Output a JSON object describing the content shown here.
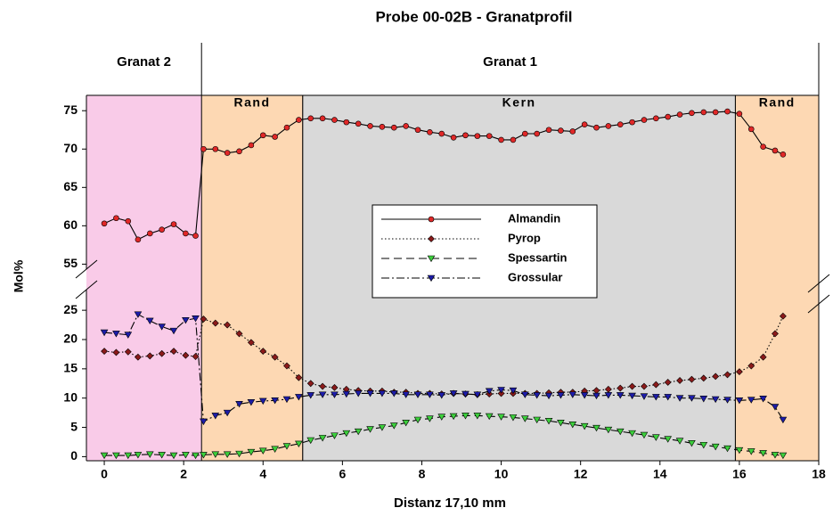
{
  "chart_data": {
    "type": "line",
    "title": "Probe 00-02B - Granatprofil",
    "xlabel": "Distanz 17,10 mm",
    "ylabel": "Mol%",
    "xlim": [
      -0.45,
      18
    ],
    "xticks": [
      0,
      2,
      4,
      6,
      8,
      10,
      12,
      14,
      16,
      18
    ],
    "y_segments": [
      {
        "ylim": [
          -0.7,
          27
        ],
        "yticks": [
          0,
          5,
          10,
          15,
          20,
          25
        ]
      },
      {
        "ylim": [
          54,
          77
        ],
        "yticks": [
          55,
          60,
          65,
          70,
          75
        ]
      }
    ],
    "groups": [
      {
        "label": "Granat 2",
        "from": -0.45,
        "to": 2.45,
        "color": "#f9cbe8"
      },
      {
        "label": "Granat 1",
        "from": 2.45,
        "to": 18
      }
    ],
    "zones": [
      {
        "label": "Rand",
        "from": 2.45,
        "to": 5,
        "color": "#fdd8b3"
      },
      {
        "label": "Kern",
        "from": 5,
        "to": 15.9,
        "color": "#d9d9d9"
      },
      {
        "label": "Rand",
        "from": 15.9,
        "to": 18,
        "color": "#fdd8b3"
      }
    ],
    "x": [
      0,
      0.3,
      0.6,
      0.85,
      1.15,
      1.45,
      1.75,
      2.05,
      2.3,
      2.5,
      2.8,
      3.1,
      3.4,
      3.7,
      4.0,
      4.3,
      4.6,
      4.9,
      5.2,
      5.5,
      5.8,
      6.1,
      6.4,
      6.7,
      7.0,
      7.3,
      7.6,
      7.9,
      8.2,
      8.5,
      8.8,
      9.1,
      9.4,
      9.7,
      10.0,
      10.3,
      10.6,
      10.9,
      11.2,
      11.5,
      11.8,
      12.1,
      12.4,
      12.7,
      13.0,
      13.3,
      13.6,
      13.9,
      14.2,
      14.5,
      14.8,
      15.1,
      15.4,
      15.7,
      16.0,
      16.3,
      16.6,
      16.9,
      17.1
    ],
    "series": [
      {
        "name": "Almandin",
        "color": "#e02828",
        "marker": "circle",
        "line_style": "solid",
        "values": [
          60.3,
          61,
          60.6,
          58.2,
          59,
          59.5,
          60.2,
          59,
          58.7,
          70,
          70,
          69.5,
          69.7,
          70.5,
          71.8,
          71.6,
          72.8,
          73.8,
          74,
          74,
          73.8,
          73.5,
          73.3,
          73,
          72.9,
          72.8,
          73,
          72.5,
          72.2,
          72,
          71.5,
          71.8,
          71.7,
          71.7,
          71.2,
          71.2,
          72,
          72,
          72.5,
          72.4,
          72.3,
          73.2,
          72.8,
          73,
          73.2,
          73.5,
          73.8,
          74,
          74.2,
          74.5,
          74.7,
          74.8,
          74.8,
          74.9,
          74.6,
          72.6,
          70.3,
          69.8,
          69.3
        ]
      },
      {
        "name": "Pyrop",
        "color": "#8b1a1a",
        "marker": "diamond",
        "line_style": "dotted",
        "values": [
          18,
          17.8,
          17.9,
          17,
          17.2,
          17.6,
          18,
          17.3,
          17.1,
          23.5,
          22.8,
          22.5,
          21,
          19.5,
          18,
          17,
          15.5,
          13.5,
          12.5,
          12,
          11.8,
          11.5,
          11.3,
          11.2,
          11.2,
          11,
          11,
          10.8,
          10.8,
          10.7,
          10.8,
          10.7,
          10.6,
          10.7,
          10.8,
          10.8,
          10.8,
          10.8,
          10.9,
          11,
          11,
          11.2,
          11.3,
          11.5,
          11.7,
          12,
          12,
          12.3,
          12.7,
          13,
          13.2,
          13.4,
          13.7,
          14,
          14.5,
          15.5,
          17,
          21,
          24
        ]
      },
      {
        "name": "Spessartin",
        "color": "#3ccf3c",
        "marker": "triangle-down",
        "line_style": "dashed",
        "values": [
          0.2,
          0.2,
          0.2,
          0.3,
          0.4,
          0.3,
          0.2,
          0.3,
          0.2,
          0.3,
          0.4,
          0.4,
          0.5,
          0.8,
          1,
          1.3,
          1.8,
          2.2,
          2.8,
          3.2,
          3.6,
          4,
          4.3,
          4.7,
          5,
          5.3,
          5.8,
          6.3,
          6.5,
          6.8,
          6.9,
          7,
          7,
          6.9,
          6.8,
          6.7,
          6.5,
          6.3,
          6.1,
          5.8,
          5.5,
          5.2,
          4.9,
          4.6,
          4.3,
          4,
          3.7,
          3.3,
          3,
          2.7,
          2.3,
          2,
          1.7,
          1.4,
          1.1,
          0.9,
          0.6,
          0.3,
          0.2
        ]
      },
      {
        "name": "Grossular",
        "color": "#1c1ca8",
        "marker": "triangle-down",
        "line_style": "dashdot",
        "values": [
          21.2,
          21,
          20.8,
          24.3,
          23.2,
          22.2,
          21.5,
          23.3,
          23.6,
          6,
          7,
          7.5,
          9,
          9.3,
          9.5,
          9.6,
          9.8,
          10.2,
          10.5,
          10.6,
          10.6,
          10.7,
          10.8,
          10.8,
          10.8,
          10.8,
          10.6,
          10.6,
          10.6,
          10.5,
          10.8,
          10.7,
          10.6,
          11.2,
          11.4,
          11.3,
          10.6,
          10.5,
          10.4,
          10.5,
          10.6,
          10.5,
          10.4,
          10.5,
          10.5,
          10.4,
          10.3,
          10.2,
          10.2,
          10,
          10,
          9.9,
          9.8,
          9.7,
          9.6,
          9.7,
          9.9,
          8.5,
          6.3
        ]
      }
    ]
  }
}
